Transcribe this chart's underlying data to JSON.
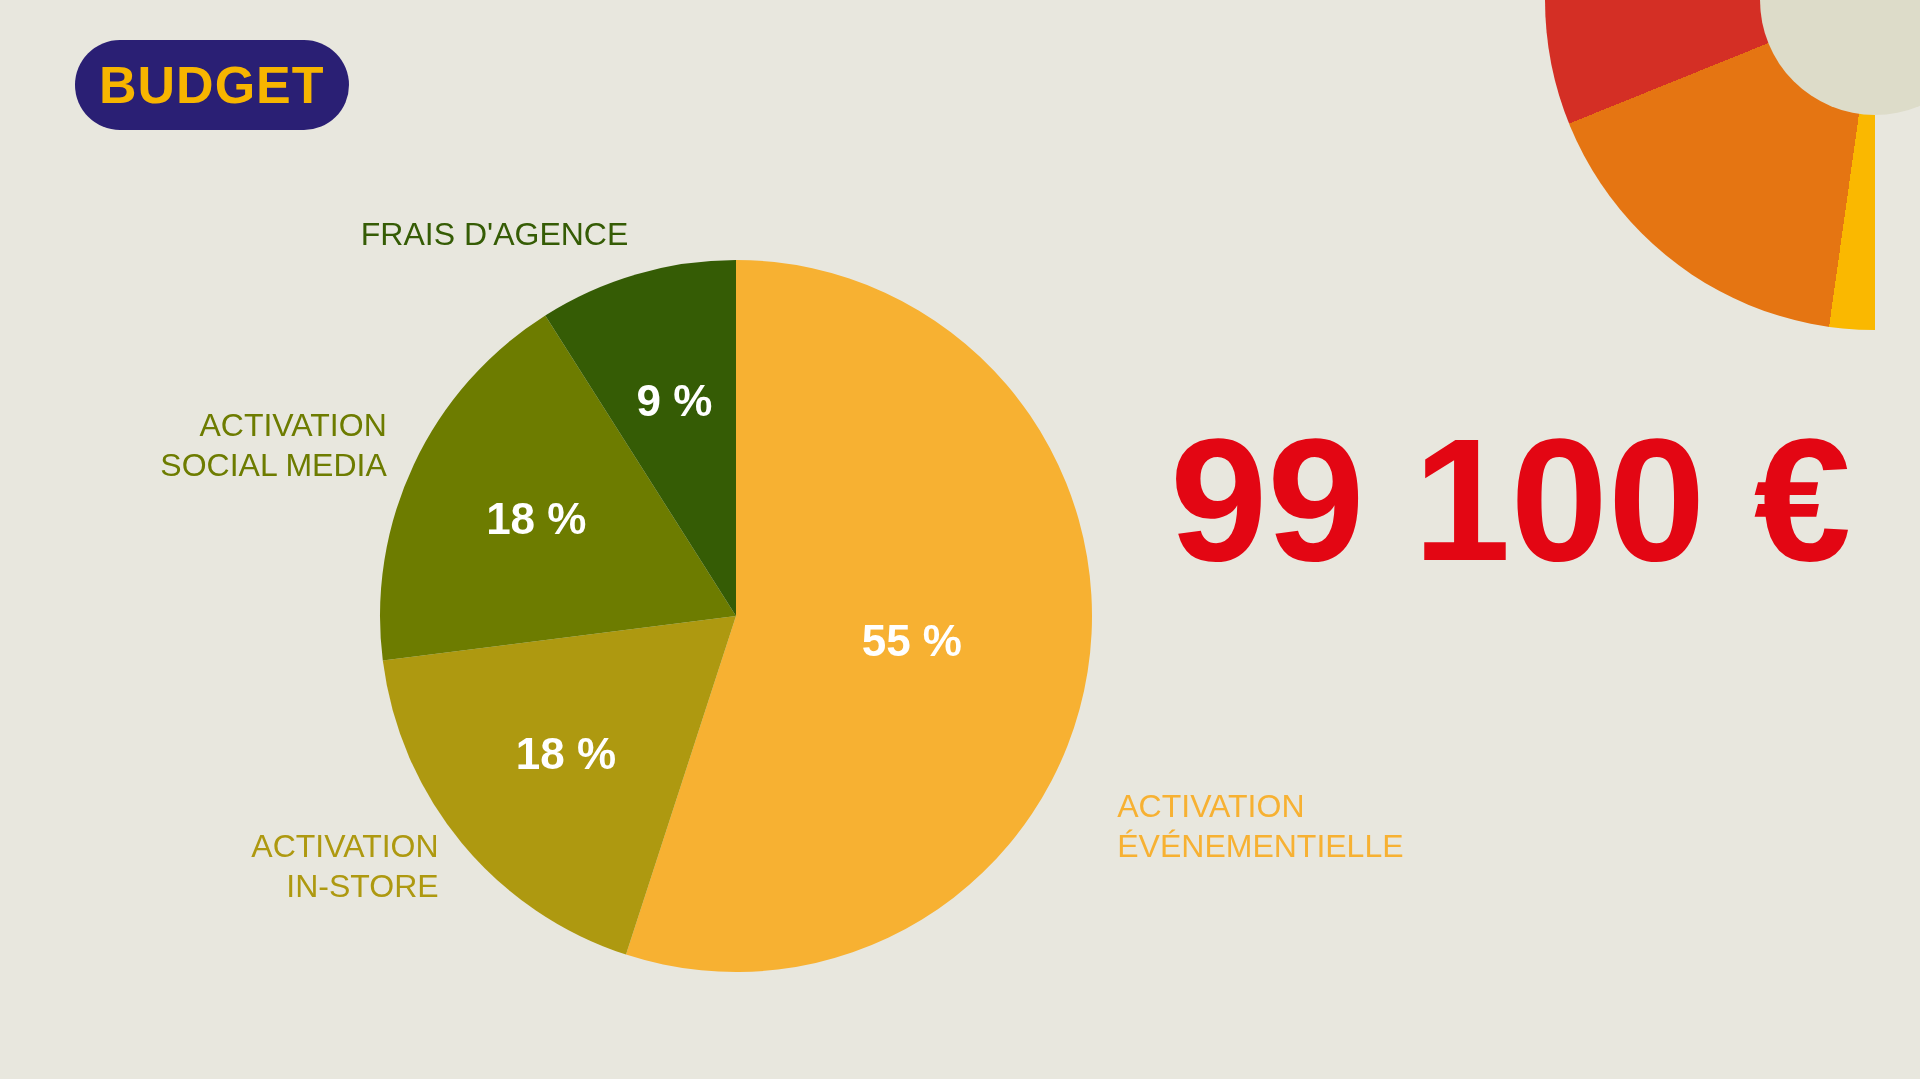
{
  "chart_data": {
    "type": "pie",
    "title": "BUDGET",
    "categories": [
      "ACTIVATION ÉVÉNEMENTIELLE",
      "ACTIVATION IN-STORE",
      "ACTIVATION SOCIAL MEDIA",
      "FRAIS D'AGENCE"
    ],
    "values": [
      55,
      18,
      18,
      9
    ],
    "value_labels": [
      "55 %",
      "18 %",
      "18 %",
      "9 %"
    ],
    "colors": [
      "#f7b132",
      "#ae9910",
      "#6d7c00",
      "#355c05"
    ],
    "annotations": [
      "99 100 €"
    ],
    "legend": false
  }
}
